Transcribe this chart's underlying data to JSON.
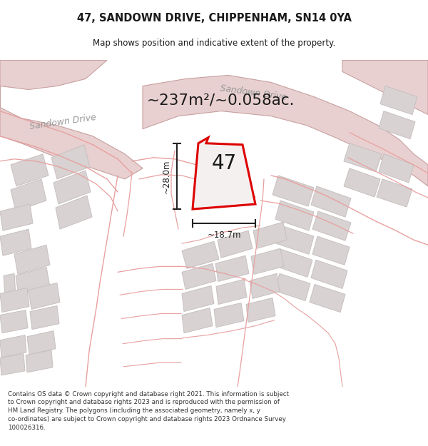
{
  "title_line1": "47, SANDOWN DRIVE, CHIPPENHAM, SN14 0YA",
  "title_line2": "Map shows position and indicative extent of the property.",
  "area_text": "~237m²/~0.058ac.",
  "number_label": "47",
  "dim_height": "~28.0m",
  "dim_width": "~18.7m",
  "footer_lines": [
    "Contains OS data © Crown copyright and database right 2021. This information is subject to Crown copyright and database rights 2023 and is reproduced with the permission of",
    "HM Land Registry. The polygons (including the associated geometry, namely x, y co-ordinates) are subject to Crown copyright and database rights 2023 Ordnance Survey",
    "100026316."
  ],
  "bg_color": "#ffffff",
  "map_bg_color": "#f5f0f0",
  "road_fill_color": "#e8d0d0",
  "building_color": "#d8d2d2",
  "building_edge_color": "#c8c0c0",
  "plot_outline_color": "#dd0000",
  "plot_fill_color": "#f5f0f0",
  "text_color": "#1a1a1a",
  "road_label_color": "#999999",
  "dim_line_color": "#222222",
  "pink_line_color": "#e8a0a0",
  "road_outline_color": "#c8a0a0"
}
